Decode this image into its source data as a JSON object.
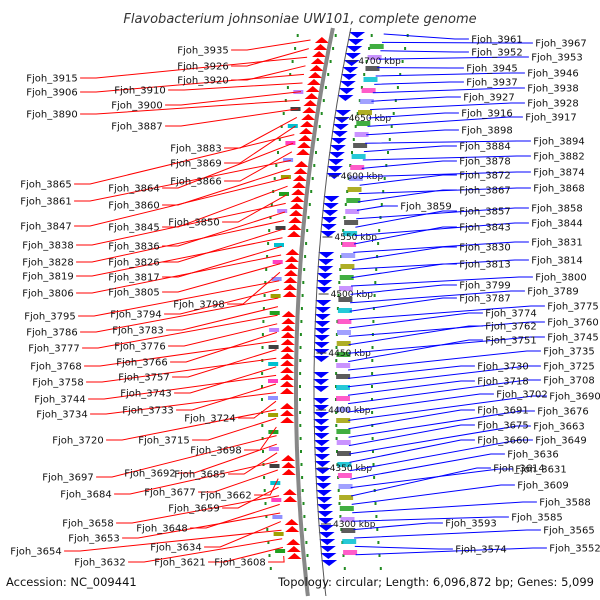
{
  "title": "Flavobacterium johnsoniae UW101, complete genome",
  "accession": "Accession: NC_009441",
  "topology_info": "Topology: circular; Length: 6,096,872 bp; Genes: 5,099",
  "colors": {
    "forward_strand": "#ff0000",
    "reverse_strand": "#0000ff",
    "backbone": "#888888",
    "ring_dots": "#228b22",
    "label_text": "#111111"
  },
  "position_ticks": [
    "4700 kbp",
    "4650 kbp",
    "4600 kbp",
    "4550 kbp",
    "4500 kbp",
    "4450 kbp",
    "4400 kbp",
    "4350 kbp",
    "4300 kbp"
  ],
  "left_labels": [
    "Fjoh_3935",
    "Fjoh_3926",
    "Fjoh_3915",
    "Fjoh_3920",
    "Fjoh_3906",
    "Fjoh_3910",
    "Fjoh_3900",
    "Fjoh_3890",
    "Fjoh_3887",
    "Fjoh_3883",
    "Fjoh_3869",
    "Fjoh_3865",
    "Fjoh_3864",
    "Fjoh_3866",
    "Fjoh_3861",
    "Fjoh_3860",
    "Fjoh_3847",
    "Fjoh_3845",
    "Fjoh_3850",
    "Fjoh_3838",
    "Fjoh_3836",
    "Fjoh_3828",
    "Fjoh_3826",
    "Fjoh_3819",
    "Fjoh_3817",
    "Fjoh_3806",
    "Fjoh_3805",
    "Fjoh_3798",
    "Fjoh_3795",
    "Fjoh_3794",
    "Fjoh_3786",
    "Fjoh_3783",
    "Fjoh_3777",
    "Fjoh_3776",
    "Fjoh_3766",
    "Fjoh_3768",
    "Fjoh_3757",
    "Fjoh_3758",
    "Fjoh_3743",
    "Fjoh_3744",
    "Fjoh_3733",
    "Fjoh_3734",
    "Fjoh_3724",
    "Fjoh_3720",
    "Fjoh_3715",
    "Fjoh_3698",
    "Fjoh_3697",
    "Fjoh_3692",
    "Fjoh_3685",
    "Fjoh_3684",
    "Fjoh_3677",
    "Fjoh_3662",
    "Fjoh_3659",
    "Fjoh_3658",
    "Fjoh_3648",
    "Fjoh_3653",
    "Fjoh_3634",
    "Fjoh_3654",
    "Fjoh_3632",
    "Fjoh_3621",
    "Fjoh_3608"
  ],
  "right_labels": [
    "Fjoh_3961",
    "Fjoh_3967",
    "Fjoh_3952",
    "Fjoh_3953",
    "Fjoh_3945",
    "Fjoh_3946",
    "Fjoh_3937",
    "Fjoh_3938",
    "Fjoh_3927",
    "Fjoh_3928",
    "Fjoh_3916",
    "Fjoh_3917",
    "Fjoh_3898",
    "Fjoh_3894",
    "Fjoh_3884",
    "Fjoh_3882",
    "Fjoh_3878",
    "Fjoh_3874",
    "Fjoh_3872",
    "Fjoh_3868",
    "Fjoh_3867",
    "Fjoh_3859",
    "Fjoh_3858",
    "Fjoh_3857",
    "Fjoh_3844",
    "Fjoh_3843",
    "Fjoh_3831",
    "Fjoh_3830",
    "Fjoh_3814",
    "Fjoh_3813",
    "Fjoh_3800",
    "Fjoh_3799",
    "Fjoh_3789",
    "Fjoh_3787",
    "Fjoh_3775",
    "Fjoh_3774",
    "Fjoh_3760",
    "Fjoh_3762",
    "Fjoh_3745",
    "Fjoh_3751",
    "Fjoh_3735",
    "Fjoh_3730",
    "Fjoh_3725",
    "Fjoh_3718",
    "Fjoh_3708",
    "Fjoh_3702",
    "Fjoh_3690",
    "Fjoh_3691",
    "Fjoh_3676",
    "Fjoh_3675",
    "Fjoh_3663",
    "Fjoh_3660",
    "Fjoh_3649",
    "Fjoh_3636",
    "Fjoh_3631",
    "Fjoh_3614",
    "Fjoh_3609",
    "Fjoh_3588",
    "Fjoh_3585",
    "Fjoh_3593",
    "Fjoh_3565",
    "Fjoh_3574",
    "Fjoh_3552"
  ]
}
